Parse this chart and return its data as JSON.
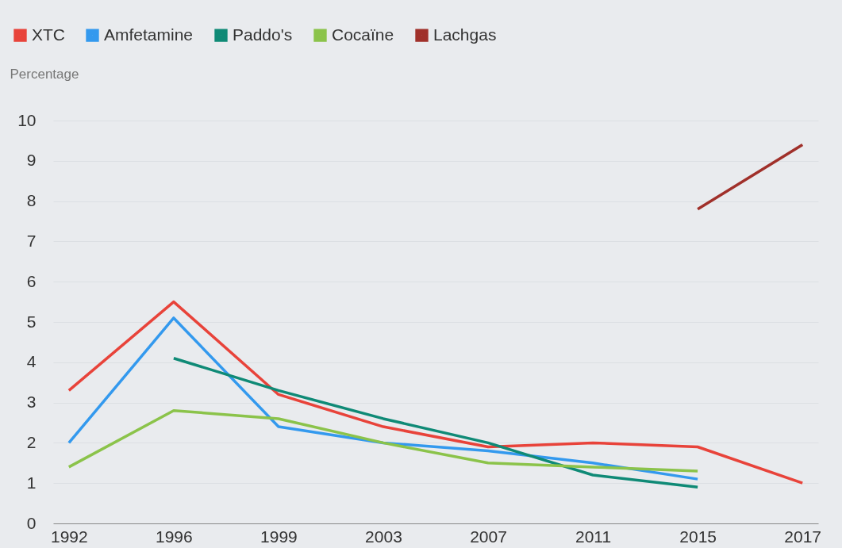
{
  "chart_data": {
    "type": "line",
    "ylabel": "Percentage",
    "categories": [
      "1992",
      "1996",
      "1999",
      "2003",
      "2007",
      "2011",
      "2015",
      "2017"
    ],
    "series": [
      {
        "name": "XTC",
        "color": "#e8433a",
        "values": [
          3.3,
          5.5,
          3.2,
          2.4,
          1.9,
          2.0,
          1.9,
          1.0
        ]
      },
      {
        "name": "Amfetamine",
        "color": "#3399ee",
        "values": [
          2.0,
          5.1,
          2.4,
          2.0,
          1.8,
          1.5,
          1.1,
          null
        ]
      },
      {
        "name": "Paddo's",
        "color": "#0f8a76",
        "values": [
          null,
          4.1,
          3.3,
          2.6,
          2.0,
          1.2,
          0.9,
          null
        ]
      },
      {
        "name": "Cocaïne",
        "color": "#8bc34a",
        "values": [
          1.4,
          2.8,
          2.6,
          2.0,
          1.5,
          1.4,
          1.3,
          null
        ]
      },
      {
        "name": "Lachgas",
        "color": "#a0302a",
        "values": [
          null,
          null,
          null,
          null,
          null,
          null,
          7.8,
          9.4
        ]
      }
    ],
    "ylim": [
      0,
      10
    ],
    "yticks": [
      0,
      1,
      2,
      3,
      4,
      5,
      6,
      7,
      8,
      9,
      10
    ],
    "grid": "y",
    "legend": "top left",
    "marker": "none",
    "line_style": "solid"
  }
}
